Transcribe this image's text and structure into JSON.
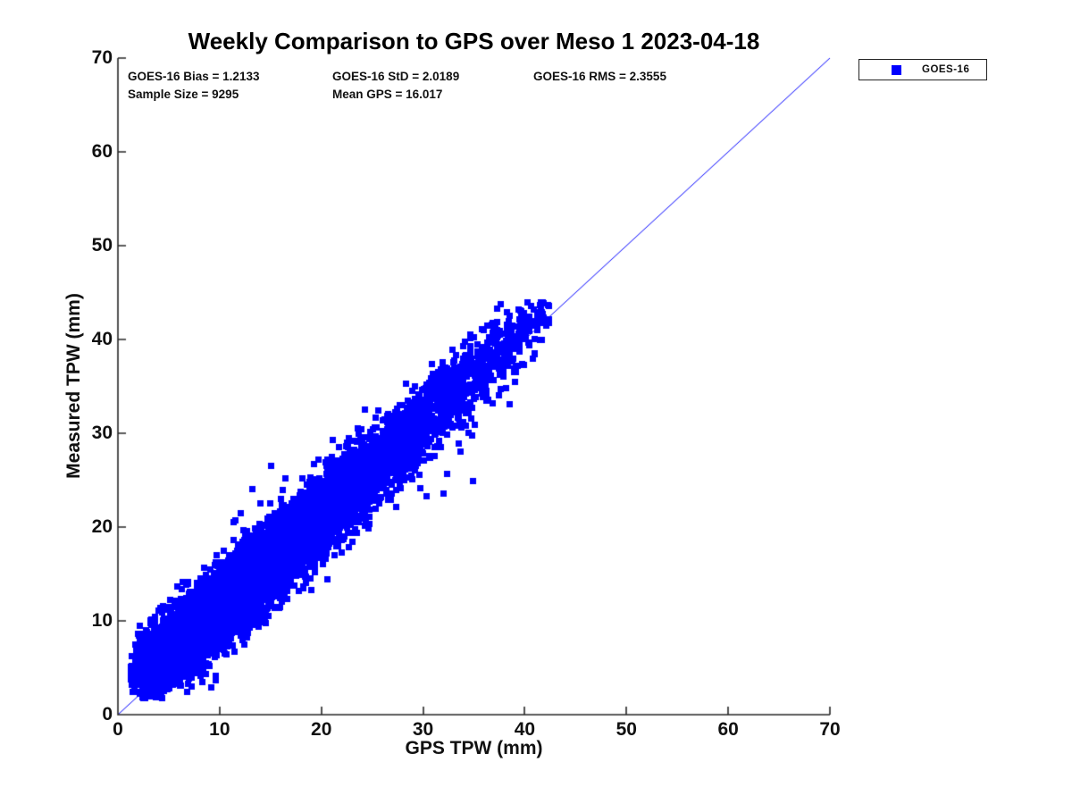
{
  "chart_data": {
    "type": "scatter",
    "title": "Weekly Comparison to GPS over Meso 1 2023-04-18",
    "xlabel": "GPS TPW (mm)",
    "ylabel": "Measured TPW (mm)",
    "xlim": [
      0,
      70
    ],
    "ylim": [
      0,
      70
    ],
    "xticks": [
      0,
      10,
      20,
      30,
      40,
      50,
      60,
      70
    ],
    "yticks": [
      0,
      10,
      20,
      30,
      40,
      50,
      60,
      70
    ],
    "grid": false,
    "background_color": "#ffffff",
    "axis_color": "#262626",
    "text_color": "#111111",
    "stats_lines": [
      "GOES-16 Bias = 1.2133",
      "GOES-16 StD = 2.0189",
      "GOES-16 RMS = 2.3555",
      "Sample Size = 9295",
      "Mean GPS = 16.017"
    ],
    "legend": {
      "position": "outside-top-right",
      "entries": [
        {
          "label": "GOES-16",
          "marker": "filled-square",
          "color": "#0000ff"
        }
      ]
    },
    "identity_line": {
      "x": [
        0,
        70
      ],
      "y": [
        0,
        70
      ],
      "color": "#0000ff",
      "width": 1
    },
    "series": [
      {
        "name": "GOES-16",
        "marker": "filled-square",
        "color": "#0000ff",
        "marker_size_px": 7,
        "sample_size": 9295,
        "bias": 1.2133,
        "std": 2.0189,
        "rms": 2.3555,
        "mean_gps": 16.017,
        "x_range_observed": [
          1.2,
          42.5
        ],
        "y_range_observed": [
          1.7,
          44.0
        ],
        "trend": "y = x + 1.2133 (tight diagonal band, denser at low-mid TPW)",
        "render_model": {
          "seed": 1337,
          "x_gamma_shape": 3,
          "x_gamma_scale": 5.34,
          "noise_std": 2.0,
          "low_x_lift": [
            2.6,
            3.5
          ]
        },
        "outlier_points": [
          [
            1.3,
            3.2
          ],
          [
            3.7,
            1.9
          ],
          [
            4.3,
            2.6
          ],
          [
            3.2,
            9.8
          ],
          [
            2.1,
            7.9
          ],
          [
            11.5,
            20.8
          ],
          [
            12.0,
            21.5
          ],
          [
            13.2,
            24.1
          ],
          [
            15.0,
            26.6
          ],
          [
            16.4,
            25.2
          ],
          [
            14.5,
            9.8
          ],
          [
            16.7,
            14.0
          ],
          [
            19.0,
            13.3
          ],
          [
            19.2,
            26.8
          ],
          [
            21.0,
            27.5
          ],
          [
            30.3,
            23.3
          ],
          [
            32.0,
            23.6
          ],
          [
            34.9,
            25.0
          ],
          [
            33.5,
            29.0
          ],
          [
            35.0,
            31.0
          ],
          [
            37.6,
            34.8
          ],
          [
            36.1,
            35.8
          ],
          [
            38.5,
            33.1
          ],
          [
            39.1,
            36.6
          ],
          [
            35.3,
            39.5
          ],
          [
            36.5,
            40.0
          ],
          [
            37.2,
            43.3
          ],
          [
            40.8,
            43.2
          ],
          [
            41.6,
            42.4
          ],
          [
            42.3,
            42.2
          ]
        ]
      }
    ]
  }
}
